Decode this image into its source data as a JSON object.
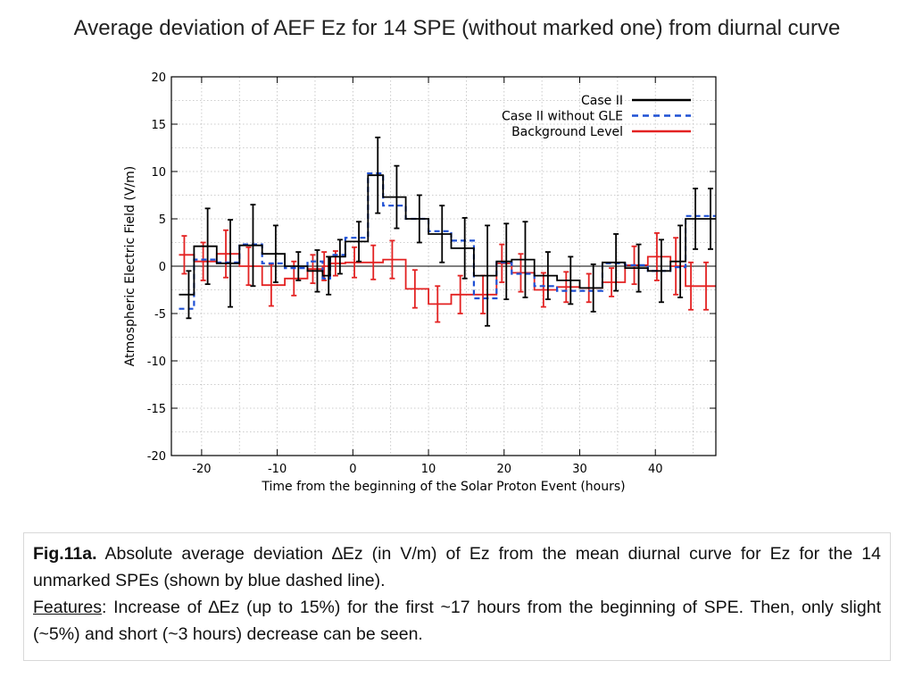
{
  "slide": {
    "title": "Average deviation of AEF Ez for 14 SPE (without marked one) from diurnal curve"
  },
  "caption": {
    "fig_label": "Fig.11a.",
    "line1": " Absolute average deviation ∆Ez (in V/m) of Ez from the mean diurnal curve for Ez for the 14 unmarked SPEs (shown by blue dashed line).",
    "features_label": "Features",
    "line2": ": Increase of ∆Ez (up to 15%) for the first ~17 hours from the beginning of SPE. Then, only slight (~5%) and short (~3 hours) decrease can be seen."
  },
  "chart_data": {
    "type": "line",
    "step": true,
    "xlabel": "Time from the beginning of the Solar Proton Event (hours)",
    "ylabel": "Atmospheric Electric Field (V/m)",
    "xlim": [
      -24,
      48
    ],
    "ylim": [
      -20,
      20
    ],
    "xticks": [
      -20,
      -10,
      0,
      10,
      20,
      30,
      40
    ],
    "yticks": [
      20,
      15,
      10,
      5,
      0,
      -5,
      -10,
      -15,
      -20
    ],
    "grid": true,
    "zero_line": true,
    "legend_position": "top-right",
    "bin_edges": [
      -23,
      -21,
      -18,
      -15,
      -12,
      -9,
      -6,
      -4,
      -3,
      -1,
      2,
      4,
      7,
      10,
      13,
      16,
      19,
      21,
      24,
      27,
      30,
      33,
      36,
      39,
      42,
      44,
      46,
      48
    ],
    "series": [
      {
        "name": "Case II",
        "color": "#000000",
        "dash": "solid",
        "values": [
          -3.0,
          2.1,
          0.3,
          2.2,
          1.3,
          0.0,
          -0.5,
          -1.0,
          1.0,
          2.6,
          9.6,
          7.3,
          5.0,
          3.4,
          1.9,
          -1.0,
          0.5,
          0.7,
          -1.0,
          -1.5,
          -2.3,
          0.4,
          -0.2,
          -0.5,
          0.5,
          5.0,
          5.0
        ],
        "errors": [
          2.5,
          4.0,
          4.6,
          4.3,
          3.0,
          1.5,
          2.2,
          2.0,
          1.8,
          2.1,
          4.0,
          3.3,
          2.5,
          3.0,
          3.2,
          5.3,
          4.0,
          4.0,
          2.5,
          2.5,
          2.5,
          3.0,
          2.5,
          3.3,
          3.8,
          3.2,
          3.2
        ]
      },
      {
        "name": "Case II without GLE",
        "color": "#1f50d4",
        "dash": "dashed",
        "values": [
          -4.5,
          0.7,
          0.4,
          2.3,
          0.3,
          -0.2,
          0.5,
          -1.3,
          1.2,
          3.0,
          9.8,
          6.4,
          5.0,
          3.7,
          2.7,
          -3.4,
          0.4,
          -0.8,
          -2.1,
          -2.6,
          -2.6,
          0.3,
          0.1,
          -0.5,
          -0.1,
          5.3,
          5.3
        ],
        "errors": []
      },
      {
        "name": "Background Level",
        "color": "#e32222",
        "dash": "solid",
        "values": [
          1.2,
          0.5,
          1.3,
          0.0,
          -2.0,
          -1.3,
          -0.3,
          0.0,
          0.3,
          0.4,
          0.4,
          0.7,
          -2.4,
          -4.0,
          -3.0,
          -3.0,
          0.3,
          -0.7,
          -2.5,
          -2.2,
          -2.3,
          -1.7,
          0.1,
          1.0,
          0.0,
          -2.1,
          -2.1
        ],
        "errors": [
          2.0,
          2.0,
          2.5,
          2.0,
          2.2,
          1.8,
          1.5,
          1.5,
          1.3,
          1.6,
          1.8,
          2.0,
          2.0,
          1.9,
          2.0,
          2.0,
          2.0,
          2.0,
          1.8,
          1.6,
          1.5,
          1.5,
          2.0,
          2.5,
          3.0,
          2.5,
          2.5
        ]
      }
    ]
  }
}
